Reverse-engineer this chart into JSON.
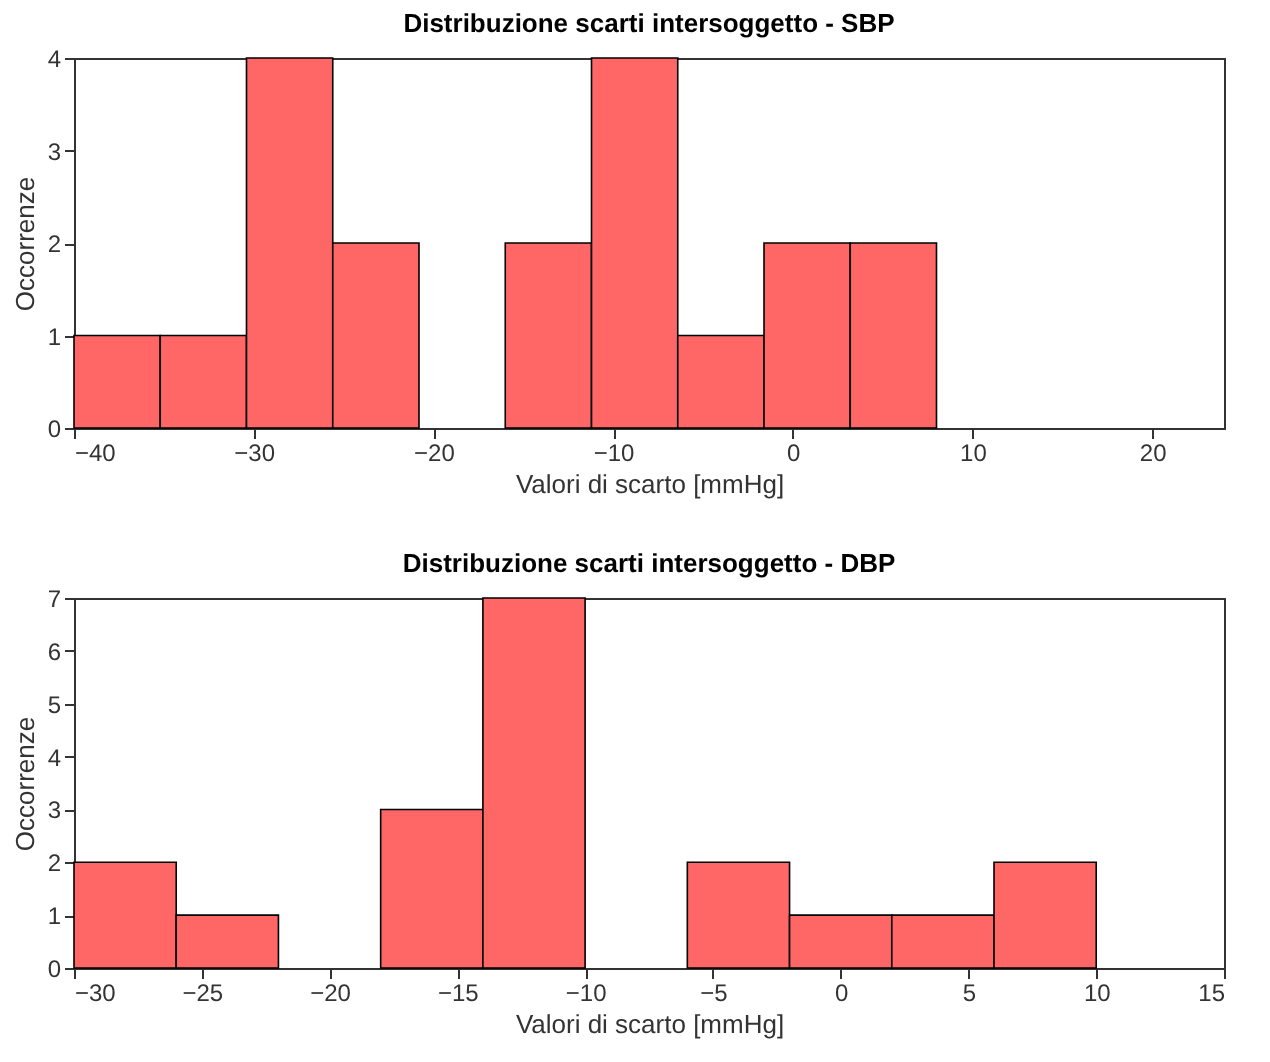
{
  "chart_data": [
    {
      "type": "histogram",
      "title": "Distribuzione scarti intersoggetto - SBP",
      "xlabel": "Valori di scarto [mmHg]",
      "ylabel": "Occorrenze",
      "bins": [
        -40,
        -35.2,
        -30.4,
        -25.6,
        -20.8,
        -16,
        -11.2,
        -6.4,
        -1.6,
        3.2,
        8.0
      ],
      "values": [
        1,
        1,
        4,
        2,
        0,
        2,
        4,
        1,
        2,
        2
      ],
      "color": "#ff6666",
      "xlim": [
        -40,
        24
      ],
      "xticks": [
        -40,
        -30,
        -20,
        -10,
        0,
        10,
        20
      ],
      "ylim": [
        0,
        4
      ],
      "yticks": [
        0,
        1,
        2,
        3,
        4
      ],
      "grid": false
    },
    {
      "type": "histogram",
      "title": "Distribuzione scarti intersoggetto - DBP",
      "xlabel": "Valori di scarto [mmHg]",
      "ylabel": "Occorrenze",
      "bins": [
        -30,
        -26,
        -22,
        -18,
        -14,
        -10,
        -6,
        -2,
        2,
        6,
        10
      ],
      "values": [
        2,
        1,
        0,
        3,
        7,
        0,
        2,
        1,
        1,
        2
      ],
      "color": "#ff6666",
      "xlim": [
        -30,
        15
      ],
      "xticks": [
        -30,
        -25,
        -20,
        -15,
        -10,
        -5,
        0,
        5,
        10,
        15
      ],
      "ylim": [
        0,
        7
      ],
      "yticks": [
        0,
        1,
        2,
        3,
        4,
        5,
        6,
        7
      ],
      "grid": false
    }
  ]
}
